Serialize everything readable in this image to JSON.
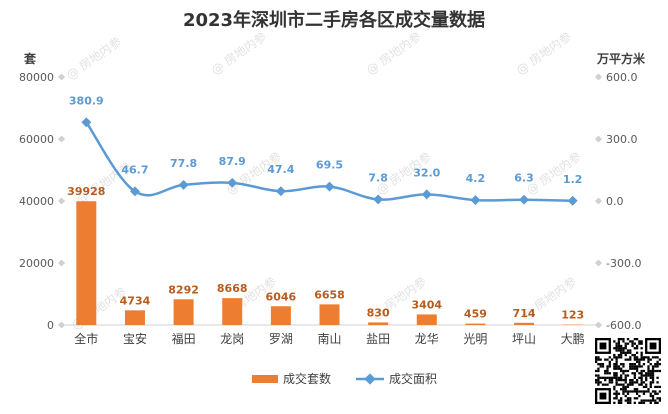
{
  "chart_data": {
    "type": "bar",
    "title": "2023年深圳市二手房各区成交量数据",
    "categories": [
      "全市",
      "宝安",
      "福田",
      "龙岗",
      "罗湖",
      "南山",
      "盐田",
      "龙华",
      "光明",
      "坪山",
      "大鹏"
    ],
    "series": [
      {
        "name": "成交套数",
        "type": "bar",
        "axis": "left",
        "color": "#ed7d31",
        "values": [
          39928,
          4734,
          8292,
          8668,
          6046,
          6658,
          830,
          3404,
          459,
          714,
          123
        ],
        "labels": [
          "39928",
          "4734",
          "8292",
          "8668",
          "6046",
          "6658",
          "830",
          "3404",
          "459",
          "714",
          "123"
        ]
      },
      {
        "name": "成交面积",
        "type": "line",
        "axis": "right",
        "color": "#5b9bd5",
        "values": [
          380.9,
          46.7,
          77.8,
          87.9,
          47.4,
          69.5,
          7.8,
          32.0,
          4.2,
          6.3,
          1.2
        ],
        "labels": [
          "380.9",
          "46.7",
          "77.8",
          "87.9",
          "47.4",
          "69.5",
          "7.8",
          "32.0",
          "4.2",
          "6.3",
          "1.2"
        ]
      }
    ],
    "y_left": {
      "label": "套",
      "ylim": [
        0,
        80000
      ],
      "ticks": [
        "0",
        "20000",
        "40000",
        "60000",
        "80000"
      ]
    },
    "y_right": {
      "label": "万平方米",
      "ylim": [
        -600,
        600
      ],
      "ticks": [
        "-600.0",
        "-300.0",
        "0.0",
        "300.0",
        "600.0"
      ]
    },
    "grid": false,
    "legend": "bottom"
  },
  "watermark": "@ 房地内参",
  "qr_code": "qr-code-icon"
}
